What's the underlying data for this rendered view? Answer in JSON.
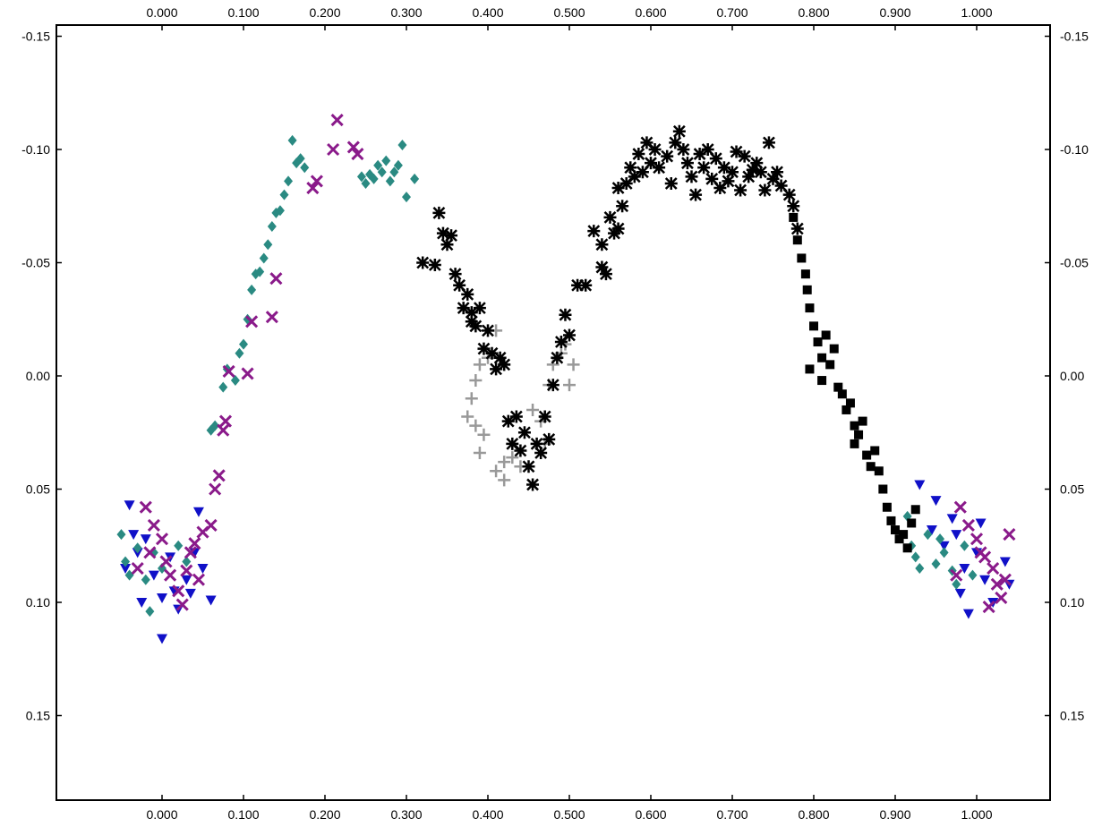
{
  "chart_data": {
    "type": "scatter",
    "title": "",
    "xlabel": "",
    "ylabel": "",
    "xlim": [
      -0.13,
      1.05
    ],
    "ylim": [
      0.18,
      -0.18
    ],
    "y_inverted": true,
    "grid": false,
    "legend": "none",
    "x_ticks": [
      "0.000",
      "0.100",
      "0.200",
      "0.300",
      "0.400",
      "0.500",
      "0.600",
      "0.700",
      "0.800",
      "0.900",
      "1.000"
    ],
    "x_tick_values": [
      0.0,
      0.1,
      0.2,
      0.3,
      0.4,
      0.5,
      0.6,
      0.7,
      0.8,
      0.9,
      1.0
    ],
    "y_ticks": [
      "-0.15",
      "-0.10",
      "-0.05",
      "0.00",
      "0.05",
      "0.10",
      "0.15"
    ],
    "y_tick_values": [
      -0.15,
      -0.1,
      -0.05,
      0.0,
      0.05,
      0.1,
      0.15
    ],
    "series": [
      {
        "marker": "triangle-down",
        "color": "#1010c8",
        "points": [
          [
            -0.04,
            0.057
          ],
          [
            -0.035,
            0.07
          ],
          [
            -0.045,
            0.085
          ],
          [
            -0.02,
            0.072
          ],
          [
            -0.01,
            0.088
          ],
          [
            0.0,
            0.098
          ],
          [
            0.01,
            0.08
          ],
          [
            0.0,
            0.116
          ],
          [
            -0.025,
            0.1
          ],
          [
            0.015,
            0.095
          ],
          [
            0.03,
            0.09
          ],
          [
            0.04,
            0.078
          ],
          [
            0.05,
            0.085
          ],
          [
            0.06,
            0.099
          ],
          [
            0.045,
            0.06
          ],
          [
            0.02,
            0.103
          ],
          [
            -0.03,
            0.078
          ],
          [
            0.035,
            0.096
          ],
          [
            0.93,
            0.048
          ],
          [
            0.95,
            0.055
          ],
          [
            0.97,
            0.063
          ],
          [
            0.96,
            0.075
          ],
          [
            0.985,
            0.085
          ],
          [
            0.98,
            0.096
          ],
          [
            1.0,
            0.078
          ],
          [
            1.01,
            0.09
          ],
          [
            1.02,
            0.1
          ],
          [
            0.99,
            0.105
          ],
          [
            1.035,
            0.082
          ],
          [
            1.04,
            0.092
          ],
          [
            0.975,
            0.07
          ],
          [
            1.005,
            0.065
          ],
          [
            0.945,
            0.068
          ]
        ]
      },
      {
        "marker": "diamond",
        "color": "#2a8a82",
        "points": [
          [
            -0.05,
            0.07
          ],
          [
            -0.045,
            0.082
          ],
          [
            -0.04,
            0.088
          ],
          [
            -0.03,
            0.076
          ],
          [
            -0.02,
            0.09
          ],
          [
            -0.015,
            0.104
          ],
          [
            -0.01,
            0.078
          ],
          [
            0.0,
            0.085
          ],
          [
            0.02,
            0.075
          ],
          [
            0.03,
            0.082
          ],
          [
            0.06,
            0.024
          ],
          [
            0.065,
            0.022
          ],
          [
            0.075,
            0.005
          ],
          [
            0.08,
            -0.003
          ],
          [
            0.09,
            0.002
          ],
          [
            0.095,
            -0.01
          ],
          [
            0.1,
            -0.014
          ],
          [
            0.105,
            -0.025
          ],
          [
            0.11,
            -0.038
          ],
          [
            0.115,
            -0.045
          ],
          [
            0.12,
            -0.046
          ],
          [
            0.125,
            -0.052
          ],
          [
            0.13,
            -0.058
          ],
          [
            0.135,
            -0.066
          ],
          [
            0.14,
            -0.072
          ],
          [
            0.145,
            -0.073
          ],
          [
            0.15,
            -0.08
          ],
          [
            0.155,
            -0.086
          ],
          [
            0.165,
            -0.094
          ],
          [
            0.17,
            -0.096
          ],
          [
            0.175,
            -0.092
          ],
          [
            0.16,
            -0.104
          ],
          [
            0.255,
            -0.089
          ],
          [
            0.26,
            -0.087
          ],
          [
            0.265,
            -0.093
          ],
          [
            0.27,
            -0.09
          ],
          [
            0.275,
            -0.095
          ],
          [
            0.28,
            -0.086
          ],
          [
            0.285,
            -0.09
          ],
          [
            0.29,
            -0.093
          ],
          [
            0.295,
            -0.102
          ],
          [
            0.3,
            -0.079
          ],
          [
            0.31,
            -0.087
          ],
          [
            0.245,
            -0.088
          ],
          [
            0.25,
            -0.085
          ],
          [
            0.915,
            0.062
          ],
          [
            0.92,
            0.075
          ],
          [
            0.93,
            0.085
          ],
          [
            0.94,
            0.07
          ],
          [
            0.95,
            0.083
          ],
          [
            0.96,
            0.078
          ],
          [
            0.97,
            0.086
          ],
          [
            0.975,
            0.092
          ],
          [
            0.985,
            0.075
          ],
          [
            0.995,
            0.088
          ],
          [
            0.925,
            0.08
          ],
          [
            0.955,
            0.072
          ]
        ]
      },
      {
        "marker": "x",
        "color": "#8a1a8a",
        "points": [
          [
            -0.02,
            0.058
          ],
          [
            -0.01,
            0.066
          ],
          [
            0.0,
            0.072
          ],
          [
            -0.03,
            0.085
          ],
          [
            -0.015,
            0.078
          ],
          [
            0.005,
            0.082
          ],
          [
            0.01,
            0.088
          ],
          [
            0.02,
            0.095
          ],
          [
            0.025,
            0.101
          ],
          [
            0.03,
            0.086
          ],
          [
            0.035,
            0.078
          ],
          [
            0.04,
            0.074
          ],
          [
            0.045,
            0.09
          ],
          [
            0.05,
            0.069
          ],
          [
            0.06,
            0.066
          ],
          [
            0.065,
            0.05
          ],
          [
            0.07,
            0.044
          ],
          [
            0.075,
            0.024
          ],
          [
            0.078,
            0.02
          ],
          [
            0.082,
            -0.002
          ],
          [
            0.105,
            -0.001
          ],
          [
            0.11,
            -0.024
          ],
          [
            0.135,
            -0.026
          ],
          [
            0.14,
            -0.043
          ],
          [
            0.185,
            -0.083
          ],
          [
            0.19,
            -0.086
          ],
          [
            0.21,
            -0.1
          ],
          [
            0.215,
            -0.113
          ],
          [
            0.235,
            -0.101
          ],
          [
            0.24,
            -0.098
          ],
          [
            0.98,
            0.058
          ],
          [
            0.99,
            0.066
          ],
          [
            1.0,
            0.072
          ],
          [
            1.01,
            0.08
          ],
          [
            1.02,
            0.085
          ],
          [
            1.025,
            0.092
          ],
          [
            1.03,
            0.098
          ],
          [
            1.035,
            0.09
          ],
          [
            1.04,
            0.07
          ],
          [
            1.015,
            0.102
          ],
          [
            0.975,
            0.088
          ],
          [
            1.005,
            0.078
          ]
        ]
      },
      {
        "marker": "plus",
        "color": "#999999",
        "points": [
          [
            0.375,
            0.018
          ],
          [
            0.38,
            0.01
          ],
          [
            0.385,
            0.002
          ],
          [
            0.39,
            -0.005
          ],
          [
            0.4,
            -0.008
          ],
          [
            0.41,
            -0.02
          ],
          [
            0.42,
            -0.005
          ],
          [
            0.385,
            0.022
          ],
          [
            0.39,
            0.034
          ],
          [
            0.41,
            0.042
          ],
          [
            0.42,
            0.038
          ],
          [
            0.43,
            0.036
          ],
          [
            0.44,
            0.04
          ],
          [
            0.455,
            0.015
          ],
          [
            0.465,
            0.02
          ],
          [
            0.47,
            0.03
          ],
          [
            0.475,
            0.004
          ],
          [
            0.48,
            -0.005
          ],
          [
            0.49,
            -0.01
          ],
          [
            0.495,
            -0.014
          ],
          [
            0.5,
            0.004
          ],
          [
            0.505,
            -0.005
          ],
          [
            0.395,
            0.026
          ],
          [
            0.42,
            0.046
          ]
        ]
      },
      {
        "marker": "asterisk",
        "color": "#000000",
        "points": [
          [
            0.32,
            -0.05
          ],
          [
            0.335,
            -0.049
          ],
          [
            0.34,
            -0.072
          ],
          [
            0.345,
            -0.063
          ],
          [
            0.35,
            -0.058
          ],
          [
            0.355,
            -0.062
          ],
          [
            0.36,
            -0.045
          ],
          [
            0.365,
            -0.04
          ],
          [
            0.37,
            -0.03
          ],
          [
            0.375,
            -0.036
          ],
          [
            0.38,
            -0.028
          ],
          [
            0.385,
            -0.022
          ],
          [
            0.39,
            -0.03
          ],
          [
            0.395,
            -0.012
          ],
          [
            0.4,
            -0.02
          ],
          [
            0.405,
            -0.01
          ],
          [
            0.41,
            -0.003
          ],
          [
            0.415,
            -0.008
          ],
          [
            0.42,
            -0.005
          ],
          [
            0.425,
            0.02
          ],
          [
            0.43,
            0.03
          ],
          [
            0.435,
            0.018
          ],
          [
            0.44,
            0.033
          ],
          [
            0.445,
            0.025
          ],
          [
            0.45,
            0.04
          ],
          [
            0.455,
            0.048
          ],
          [
            0.46,
            0.03
          ],
          [
            0.465,
            0.034
          ],
          [
            0.47,
            0.018
          ],
          [
            0.475,
            0.028
          ],
          [
            0.48,
            0.004
          ],
          [
            0.485,
            -0.008
          ],
          [
            0.49,
            -0.015
          ],
          [
            0.495,
            -0.027
          ],
          [
            0.5,
            -0.018
          ],
          [
            0.51,
            -0.04
          ],
          [
            0.52,
            -0.04
          ],
          [
            0.53,
            -0.064
          ],
          [
            0.54,
            -0.048
          ],
          [
            0.545,
            -0.045
          ],
          [
            0.55,
            -0.07
          ],
          [
            0.555,
            -0.063
          ],
          [
            0.56,
            -0.083
          ],
          [
            0.565,
            -0.075
          ],
          [
            0.57,
            -0.085
          ],
          [
            0.575,
            -0.092
          ],
          [
            0.58,
            -0.088
          ],
          [
            0.585,
            -0.098
          ],
          [
            0.59,
            -0.09
          ],
          [
            0.595,
            -0.103
          ],
          [
            0.6,
            -0.094
          ],
          [
            0.605,
            -0.1
          ],
          [
            0.61,
            -0.092
          ],
          [
            0.62,
            -0.097
          ],
          [
            0.625,
            -0.085
          ],
          [
            0.63,
            -0.103
          ],
          [
            0.635,
            -0.108
          ],
          [
            0.64,
            -0.1
          ],
          [
            0.645,
            -0.094
          ],
          [
            0.65,
            -0.088
          ],
          [
            0.655,
            -0.08
          ],
          [
            0.66,
            -0.098
          ],
          [
            0.665,
            -0.092
          ],
          [
            0.67,
            -0.1
          ],
          [
            0.675,
            -0.087
          ],
          [
            0.68,
            -0.096
          ],
          [
            0.685,
            -0.083
          ],
          [
            0.69,
            -0.092
          ],
          [
            0.695,
            -0.086
          ],
          [
            0.7,
            -0.09
          ],
          [
            0.705,
            -0.099
          ],
          [
            0.71,
            -0.082
          ],
          [
            0.715,
            -0.097
          ],
          [
            0.72,
            -0.088
          ],
          [
            0.725,
            -0.091
          ],
          [
            0.73,
            -0.094
          ],
          [
            0.735,
            -0.09
          ],
          [
            0.74,
            -0.082
          ],
          [
            0.745,
            -0.103
          ],
          [
            0.75,
            -0.087
          ],
          [
            0.755,
            -0.09
          ],
          [
            0.76,
            -0.084
          ],
          [
            0.77,
            -0.08
          ],
          [
            0.775,
            -0.075
          ],
          [
            0.78,
            -0.065
          ],
          [
            0.54,
            -0.058
          ],
          [
            0.56,
            -0.065
          ],
          [
            0.38,
            -0.024
          ]
        ]
      },
      {
        "marker": "square",
        "color": "#000000",
        "points": [
          [
            0.785,
            -0.052
          ],
          [
            0.79,
            -0.045
          ],
          [
            0.792,
            -0.038
          ],
          [
            0.795,
            -0.03
          ],
          [
            0.8,
            -0.022
          ],
          [
            0.805,
            -0.015
          ],
          [
            0.81,
            -0.008
          ],
          [
            0.81,
            0.002
          ],
          [
            0.815,
            -0.018
          ],
          [
            0.82,
            -0.005
          ],
          [
            0.825,
            -0.012
          ],
          [
            0.83,
            0.005
          ],
          [
            0.835,
            0.008
          ],
          [
            0.84,
            0.015
          ],
          [
            0.845,
            0.012
          ],
          [
            0.85,
            0.022
          ],
          [
            0.855,
            0.026
          ],
          [
            0.86,
            0.02
          ],
          [
            0.865,
            0.035
          ],
          [
            0.87,
            0.04
          ],
          [
            0.875,
            0.033
          ],
          [
            0.88,
            0.042
          ],
          [
            0.885,
            0.05
          ],
          [
            0.89,
            0.058
          ],
          [
            0.895,
            0.064
          ],
          [
            0.9,
            0.068
          ],
          [
            0.905,
            0.072
          ],
          [
            0.91,
            0.07
          ],
          [
            0.915,
            0.076
          ],
          [
            0.92,
            0.065
          ],
          [
            0.925,
            0.059
          ],
          [
            0.78,
            -0.06
          ],
          [
            0.775,
            -0.07
          ],
          [
            0.795,
            -0.003
          ],
          [
            0.85,
            0.03
          ]
        ]
      }
    ]
  }
}
